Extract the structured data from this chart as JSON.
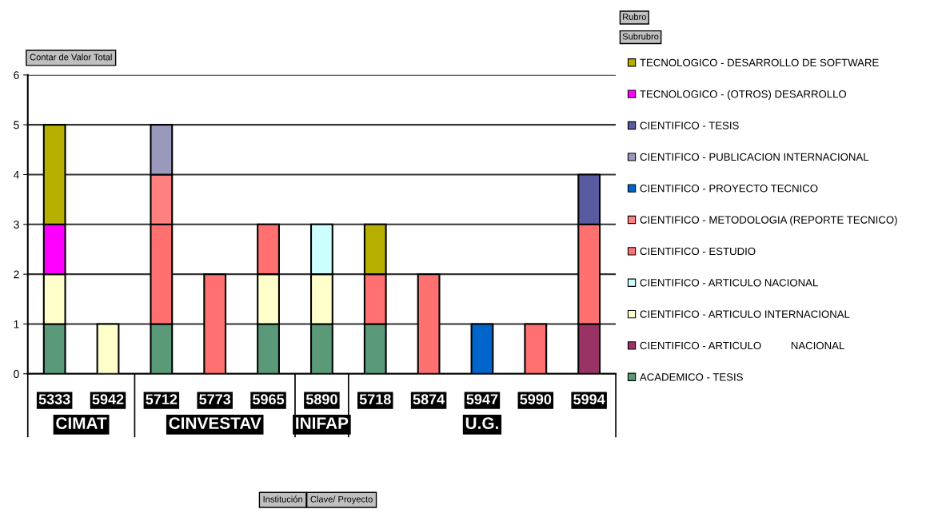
{
  "chart_data": {
    "type": "bar",
    "stacked": true,
    "categories": [
      "5333",
      "5942",
      "5712",
      "5773",
      "5965",
      "5890",
      "5718",
      "5874",
      "5947",
      "5990",
      "5994"
    ],
    "series": [
      {
        "name": "ACADEMICO - TESIS",
        "color": "#5a9a78",
        "values": [
          1,
          null,
          1,
          null,
          1,
          1,
          1,
          null,
          null,
          null,
          null
        ]
      },
      {
        "name": "CIENTIFICO - ARTICULO          NACIONAL",
        "color": "#993366",
        "values": [
          null,
          null,
          null,
          null,
          null,
          null,
          null,
          null,
          null,
          null,
          1
        ]
      },
      {
        "name": "CIENTIFICO - ARTICULO INTERNACIONAL",
        "color": "#ffffcc",
        "values": [
          1,
          1,
          null,
          null,
          1,
          1,
          null,
          null,
          null,
          null,
          null
        ]
      },
      {
        "name": "CIENTIFICO - ARTICULO NACIONAL",
        "color": "#ccffff",
        "values": [
          null,
          null,
          null,
          null,
          null,
          1,
          null,
          null,
          null,
          null,
          null
        ]
      },
      {
        "name": "CIENTIFICO - ESTUDIO",
        "color": "#ff7070",
        "values": [
          null,
          null,
          2,
          2,
          1,
          null,
          1,
          2,
          null,
          1,
          2
        ]
      },
      {
        "name": "CIENTIFICO - METODOLOGIA (REPORTE TECNICO)",
        "color": "#ff8080",
        "values": [
          null,
          null,
          1,
          null,
          null,
          null,
          null,
          null,
          null,
          null,
          null
        ]
      },
      {
        "name": "CIENTIFICO - PROYECTO TECNICO",
        "color": "#0066cc",
        "values": [
          null,
          null,
          null,
          null,
          null,
          null,
          null,
          null,
          1,
          null,
          null
        ]
      },
      {
        "name": "CIENTIFICO - PUBLICACION INTERNACIONAL",
        "color": "#9999bb",
        "values": [
          null,
          null,
          1,
          null,
          null,
          null,
          null,
          null,
          null,
          null,
          null
        ]
      },
      {
        "name": "CIENTIFICO - TESIS",
        "color": "#5a5aa0",
        "values": [
          null,
          null,
          null,
          null,
          null,
          null,
          null,
          null,
          null,
          null,
          1
        ]
      },
      {
        "name": "TECNOLOGICO - (OTROS) DESARROLLO",
        "color": "#ff00ff",
        "values": [
          1,
          null,
          null,
          null,
          null,
          null,
          null,
          null,
          null,
          null,
          null
        ]
      },
      {
        "name": "TECNOLOGICO - DESARROLLO DE SOFTWARE",
        "color": "#b8b000",
        "values": [
          2,
          null,
          null,
          null,
          null,
          null,
          1,
          null,
          null,
          null,
          null
        ]
      }
    ],
    "ylim": [
      0,
      6
    ],
    "yticks": [
      0,
      1,
      2,
      3,
      4,
      5,
      6
    ],
    "grid": "y",
    "legend": "right",
    "annotations": [
      "Contar de Valor Total",
      "Rubro",
      "Subrubro",
      "Institución",
      "Clave/ Proyecto",
      "CIMAT",
      "CINVESTAV",
      "INIFAP",
      "U.G."
    ]
  }
}
